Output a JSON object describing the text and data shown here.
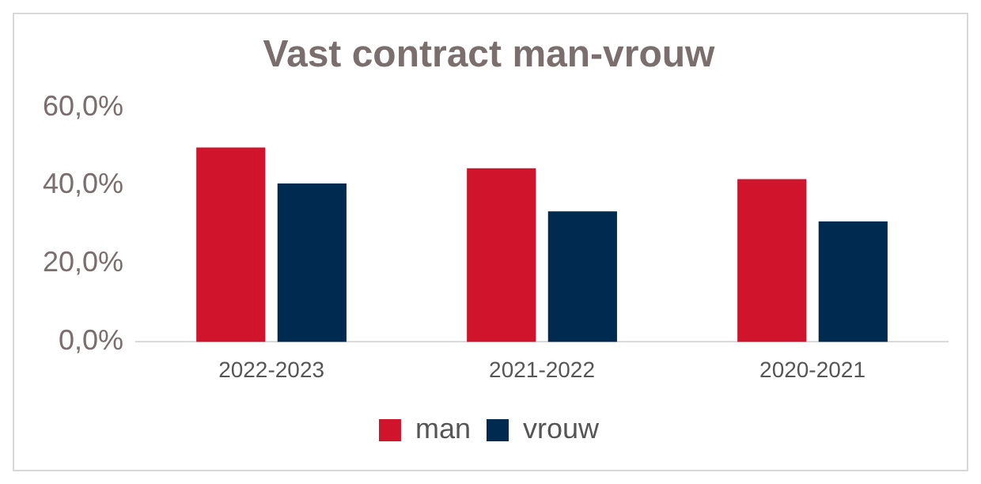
{
  "chart_data": {
    "type": "bar",
    "title": "Vast contract man-vrouw",
    "categories": [
      "2022-2023",
      "2021-2022",
      "2020-2021"
    ],
    "series": [
      {
        "name": "man",
        "color": "#cf142b",
        "values": [
          49.7,
          44.4,
          41.6
        ]
      },
      {
        "name": "vrouw",
        "color": "#002a50",
        "values": [
          40.5,
          33.4,
          30.8
        ]
      }
    ],
    "ylim": [
      0,
      60
    ],
    "yticks": [
      {
        "value": 0,
        "label": "0,0%"
      },
      {
        "value": 20,
        "label": "20,0%"
      },
      {
        "value": 40,
        "label": "40,0%"
      },
      {
        "value": 60,
        "label": "60,0%"
      }
    ],
    "grid": false,
    "legend": "bottom"
  }
}
